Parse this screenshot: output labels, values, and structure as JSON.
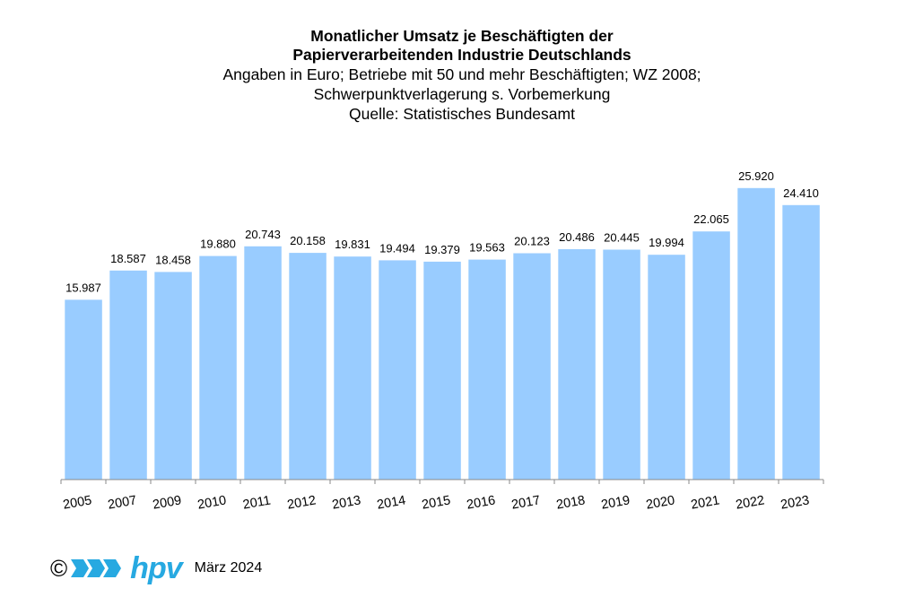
{
  "chart_data": {
    "type": "bar",
    "title_line1": "Monatlicher Umsatz je Beschäftigten der",
    "title_line2": "Papierverarbeitenden Industrie Deutschlands",
    "subtitle_line1": "Angaben in Euro; Betriebe mit 50 und mehr Beschäftigten; WZ 2008;",
    "subtitle_line2": "Schwerpunktverlagerung s. Vorbemerkung",
    "subtitle_line3": "Quelle: Statistisches Bundesamt",
    "categories": [
      "2005",
      "2007",
      "2009",
      "2010",
      "2011",
      "2012",
      "2013",
      "2014",
      "2015",
      "2016",
      "2017",
      "2018",
      "2019",
      "2020",
      "2021",
      "2022",
      "2023"
    ],
    "values": [
      15987,
      18587,
      18458,
      19880,
      20743,
      20158,
      19831,
      19494,
      19379,
      19563,
      20123,
      20486,
      20445,
      19994,
      22065,
      25920,
      24410
    ],
    "labels": [
      "15.987",
      "18.587",
      "18.458",
      "19.880",
      "20.743",
      "20.158",
      "19.831",
      "19.494",
      "19.379",
      "19.563",
      "20.123",
      "20.486",
      "20.445",
      "19.994",
      "22.065",
      "25.920",
      "24.410"
    ],
    "ylim": [
      0,
      27500
    ],
    "grid": false,
    "bar_color": "#99ccff"
  },
  "footer": {
    "copyright": "©",
    "logo_text": "hpv",
    "date": "März 2024",
    "logo_color": "#27a9e1"
  }
}
